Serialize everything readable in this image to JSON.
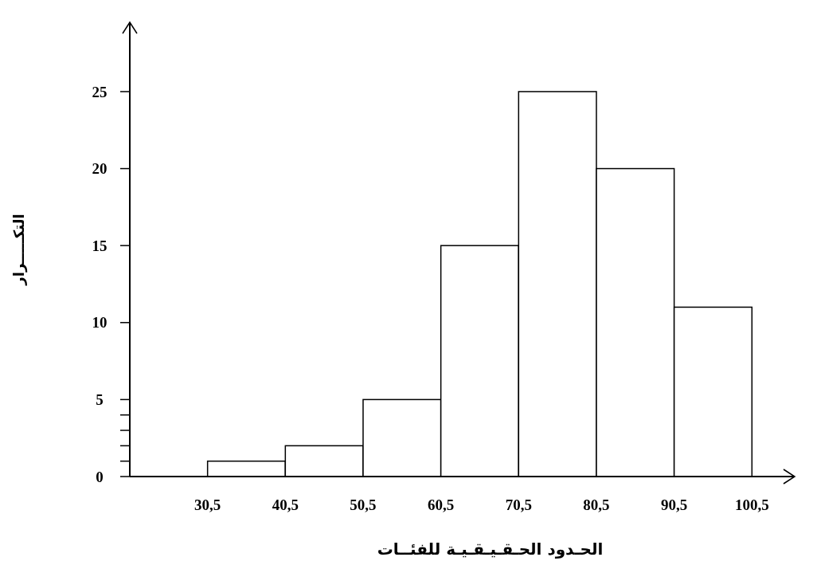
{
  "chart_data": {
    "type": "histogram",
    "xlabel": "الحـدود الحـقـيـقـيـة للفئــات",
    "ylabel": "التكـــــرار",
    "bins": [
      30.5,
      40.5,
      50.5,
      60.5,
      70.5,
      80.5,
      90.5,
      100.5
    ],
    "values": [
      1,
      2,
      5,
      15,
      25,
      20,
      11
    ],
    "color": "#ffffff",
    "xlim": [
      20.5,
      106
    ],
    "xticks": [
      {
        "value": 30.5,
        "label": "30,5"
      },
      {
        "value": 40.5,
        "label": "40,5"
      },
      {
        "value": 50.5,
        "label": "50,5"
      },
      {
        "value": 60.5,
        "label": "60,5"
      },
      {
        "value": 70.5,
        "label": "70,5"
      },
      {
        "value": 80.5,
        "label": "80,5"
      },
      {
        "value": 90.5,
        "label": "90,5"
      },
      {
        "value": 100.5,
        "label": "100,5"
      }
    ],
    "ylim": [
      0,
      29.5
    ],
    "yticks": [
      0,
      {
        "value": 1,
        "label": null
      },
      {
        "value": 2,
        "label": null
      },
      {
        "value": 3,
        "label": null
      },
      {
        "value": 4,
        "label": null
      },
      5,
      10,
      15,
      20,
      25
    ],
    "grid": false
  }
}
